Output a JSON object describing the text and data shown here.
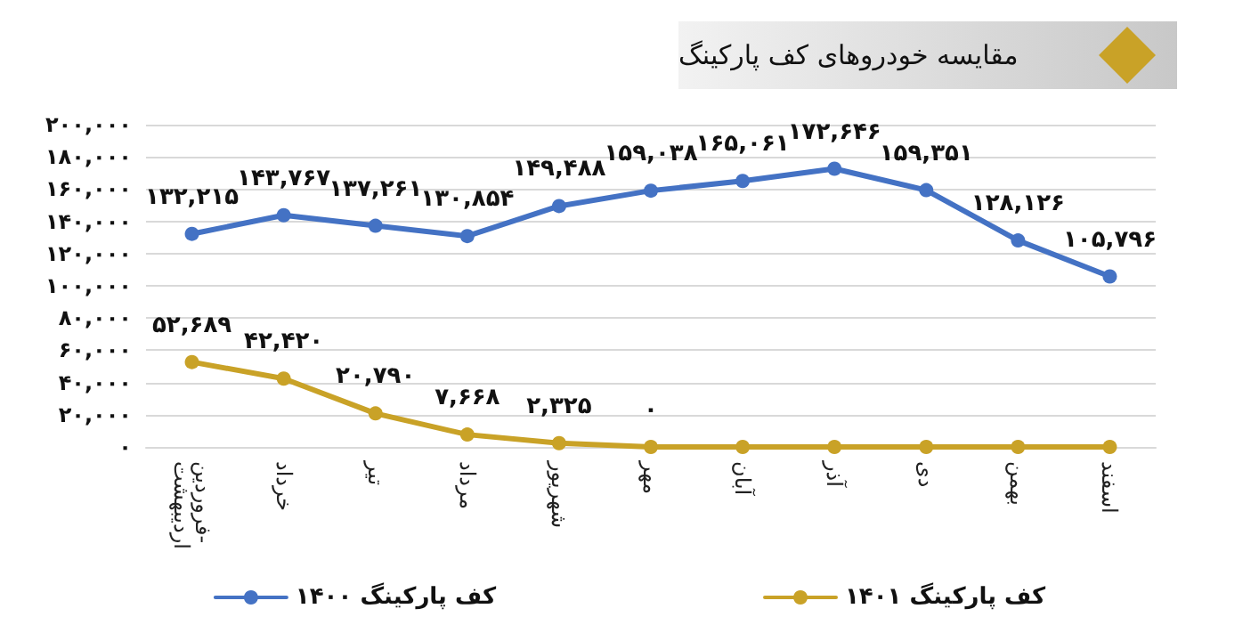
{
  "chart_data": {
    "type": "line",
    "title": "مقایسه خودروهای کف پارکینگ",
    "categories": [
      "فروردین-اردیبهشت",
      "خرداد",
      "تیر",
      "مرداد",
      "شهریور",
      "مهر",
      "آبان",
      "آذر",
      "دی",
      "بهمن",
      "اسفند"
    ],
    "series": [
      {
        "name": "کف پارکینگ ۱۴۰۰",
        "color": "#4472c4",
        "values": [
          132215,
          143767,
          137261,
          130854,
          149488,
          159038,
          165061,
          172646,
          159351,
          128126,
          105796
        ],
        "value_labels": [
          "۱۳۲,۲۱۵",
          "۱۴۳,۷۶۷",
          "۱۳۷,۲۶۱",
          "۱۳۰,۸۵۴",
          "۱۴۹,۴۸۸",
          "۱۵۹,۰۳۸",
          "۱۶۵,۰۶۱",
          "۱۷۲,۶۴۶",
          "۱۵۹,۳۵۱",
          "۱۲۸,۱۲۶",
          "۱۰۵,۷۹۶"
        ]
      },
      {
        "name": "کف پارکینگ ۱۴۰۱",
        "color": "#c9a227",
        "values": [
          52689,
          42420,
          20790,
          7668,
          2325,
          0,
          0,
          0,
          0,
          0,
          0
        ],
        "value_labels": [
          "۵۲,۶۸۹",
          "۴۲,۴۲۰",
          "۲۰,۷۹۰",
          "۷,۶۶۸",
          "۲,۳۲۵",
          "۰",
          null,
          null,
          null,
          null,
          null
        ]
      }
    ],
    "ylim": [
      0,
      200000
    ],
    "yticks": [
      {
        "value": 0,
        "label": "۰"
      },
      {
        "value": 20000,
        "label": "۲۰,۰۰۰"
      },
      {
        "value": 40000,
        "label": "۴۰,۰۰۰"
      },
      {
        "value": 60000,
        "label": "۶۰,۰۰۰"
      },
      {
        "value": 80000,
        "label": "۸۰,۰۰۰"
      },
      {
        "value": 100000,
        "label": "۱۰۰,۰۰۰"
      },
      {
        "value": 120000,
        "label": "۱۲۰,۰۰۰"
      },
      {
        "value": 140000,
        "label": "۱۴۰,۰۰۰"
      },
      {
        "value": 160000,
        "label": "۱۶۰,۰۰۰"
      },
      {
        "value": 180000,
        "label": "۱۸۰,۰۰۰"
      },
      {
        "value": 200000,
        "label": "۲۰۰,۰۰۰"
      }
    ],
    "grid": "y",
    "legend": "bottom",
    "marker": "circle",
    "line_style": "solid"
  }
}
